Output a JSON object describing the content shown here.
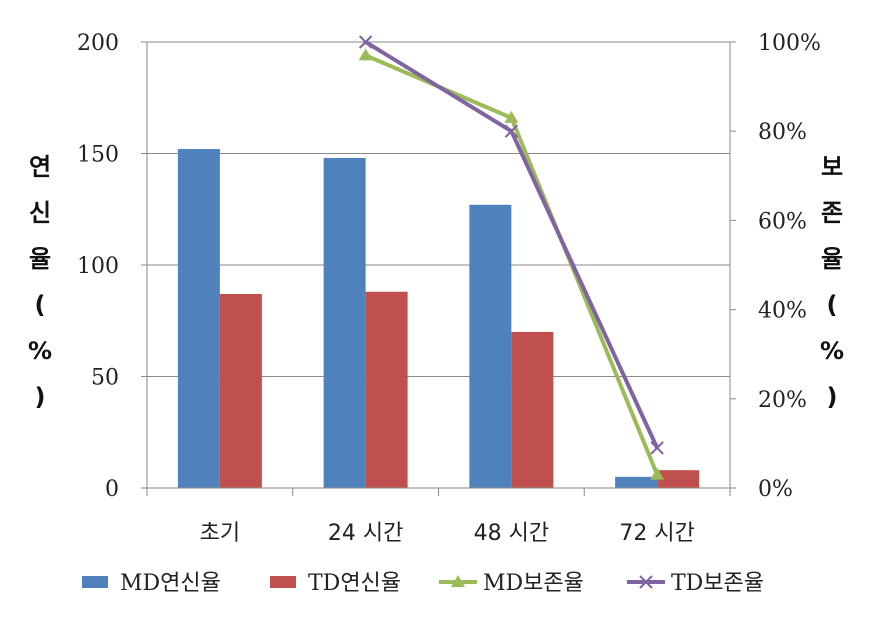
{
  "chart_data": {
    "type": "bar",
    "categories": [
      "초기",
      "24 시간",
      "48 시간",
      "72 시간"
    ],
    "series": [
      {
        "name": "MD연신율",
        "kind": "bar",
        "axis": "left",
        "color": "#4F81BD",
        "values": [
          152,
          148,
          127,
          5
        ]
      },
      {
        "name": "TD연신율",
        "kind": "bar",
        "axis": "left",
        "color": "#C0504D",
        "values": [
          87,
          88,
          70,
          8
        ]
      },
      {
        "name": "MD보존율",
        "kind": "line",
        "axis": "right",
        "color": "#9BBB59",
        "marker": "triangle",
        "values": [
          null,
          0.97,
          0.83,
          0.03
        ]
      },
      {
        "name": "TD보존율",
        "kind": "line",
        "axis": "right",
        "color": "#8064A2",
        "marker": "x",
        "values": [
          null,
          1.0,
          0.8,
          0.09
        ]
      }
    ],
    "ylim": [
      0,
      200
    ],
    "yticks": [
      "0",
      "50",
      "100",
      "150",
      "200"
    ],
    "y2lim": [
      0,
      1
    ],
    "y2ticks": [
      "0%",
      "20%",
      "40%",
      "60%",
      "80%",
      "100%"
    ],
    "ylabel_chars": [
      "연",
      "신",
      "율",
      "(",
      "%",
      ")"
    ],
    "y2label_chars": [
      "보",
      "존",
      "율",
      "(",
      "%",
      ")"
    ],
    "grid": true,
    "legend_position": "bottom"
  }
}
